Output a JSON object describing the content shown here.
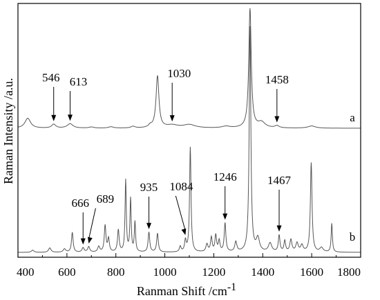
{
  "chart_data": {
    "type": "line",
    "title": "",
    "xlabel": "Ranman Shift /cm",
    "xlabel_superscript": "-1",
    "ylabel": "Raman Intensity /a.u.",
    "xlim": [
      400,
      1800
    ],
    "x_ticks": [
      400,
      600,
      800,
      1000,
      1200,
      1400,
      1600,
      1800
    ],
    "y_ticks_shown": false,
    "grid": false,
    "series": [
      {
        "name": "a",
        "line_color": "#555555",
        "baseline": 0.72,
        "peaks": [
          {
            "x": 440,
            "h": 0.09,
            "w": 14
          },
          {
            "x": 546,
            "h": 0.035,
            "w": 10
          },
          {
            "x": 613,
            "h": 0.04,
            "w": 14
          },
          {
            "x": 700,
            "h": 0.01,
            "w": 12
          },
          {
            "x": 780,
            "h": 0.012,
            "w": 12
          },
          {
            "x": 870,
            "h": 0.015,
            "w": 10
          },
          {
            "x": 940,
            "h": 0.02,
            "w": 8
          },
          {
            "x": 970,
            "h": 0.47,
            "w": 7
          },
          {
            "x": 1030,
            "h": 0.025,
            "w": 30
          },
          {
            "x": 1100,
            "h": 0.03,
            "w": 30
          },
          {
            "x": 1250,
            "h": 0.015,
            "w": 20
          },
          {
            "x": 1348,
            "h": 1.08,
            "w": 6
          },
          {
            "x": 1395,
            "h": 0.05,
            "w": 18
          },
          {
            "x": 1458,
            "h": 0.02,
            "w": 10
          },
          {
            "x": 1600,
            "h": 0.02,
            "w": 18
          }
        ]
      },
      {
        "name": "b",
        "line_color": "#555555",
        "baseline": 0.0,
        "peaks": [
          {
            "x": 460,
            "h": 0.02,
            "w": 6
          },
          {
            "x": 530,
            "h": 0.04,
            "w": 6
          },
          {
            "x": 590,
            "h": 0.03,
            "w": 6
          },
          {
            "x": 622,
            "h": 0.18,
            "w": 4
          },
          {
            "x": 666,
            "h": 0.04,
            "w": 5
          },
          {
            "x": 689,
            "h": 0.05,
            "w": 5
          },
          {
            "x": 730,
            "h": 0.05,
            "w": 5
          },
          {
            "x": 756,
            "h": 0.24,
            "w": 4
          },
          {
            "x": 770,
            "h": 0.12,
            "w": 4
          },
          {
            "x": 810,
            "h": 0.2,
            "w": 4
          },
          {
            "x": 840,
            "h": 0.65,
            "w": 3
          },
          {
            "x": 860,
            "h": 0.48,
            "w": 3
          },
          {
            "x": 878,
            "h": 0.27,
            "w": 3
          },
          {
            "x": 935,
            "h": 0.18,
            "w": 4
          },
          {
            "x": 970,
            "h": 0.17,
            "w": 4
          },
          {
            "x": 1063,
            "h": 0.05,
            "w": 4
          },
          {
            "x": 1084,
            "h": 0.1,
            "w": 4
          },
          {
            "x": 1104,
            "h": 0.95,
            "w": 3.5
          },
          {
            "x": 1172,
            "h": 0.07,
            "w": 5
          },
          {
            "x": 1190,
            "h": 0.13,
            "w": 4
          },
          {
            "x": 1208,
            "h": 0.15,
            "w": 4
          },
          {
            "x": 1222,
            "h": 0.1,
            "w": 4
          },
          {
            "x": 1246,
            "h": 0.26,
            "w": 4
          },
          {
            "x": 1290,
            "h": 0.09,
            "w": 5
          },
          {
            "x": 1348,
            "h": 2.04,
            "w": 4
          },
          {
            "x": 1380,
            "h": 0.12,
            "w": 8
          },
          {
            "x": 1430,
            "h": 0.08,
            "w": 8
          },
          {
            "x": 1467,
            "h": 0.15,
            "w": 4
          },
          {
            "x": 1490,
            "h": 0.1,
            "w": 4
          },
          {
            "x": 1515,
            "h": 0.11,
            "w": 5
          },
          {
            "x": 1540,
            "h": 0.08,
            "w": 6
          },
          {
            "x": 1560,
            "h": 0.06,
            "w": 6
          },
          {
            "x": 1598,
            "h": 0.81,
            "w": 4
          },
          {
            "x": 1640,
            "h": 0.04,
            "w": 8
          },
          {
            "x": 1682,
            "h": 0.26,
            "w": 3
          }
        ]
      }
    ],
    "annotations": [
      {
        "text": "546",
        "x": 546,
        "series": "a"
      },
      {
        "text": "613",
        "x": 613,
        "series": "a"
      },
      {
        "text": "1030",
        "x": 1030,
        "series": "a"
      },
      {
        "text": "1458",
        "x": 1458,
        "series": "a"
      },
      {
        "text": "666",
        "x": 666,
        "series": "b"
      },
      {
        "text": "689",
        "x": 689,
        "series": "b"
      },
      {
        "text": "935",
        "x": 935,
        "series": "b"
      },
      {
        "text": "1084",
        "x": 1084,
        "series": "b"
      },
      {
        "text": "1246",
        "x": 1246,
        "series": "b"
      },
      {
        "text": "1467",
        "x": 1467,
        "series": "b"
      }
    ]
  }
}
